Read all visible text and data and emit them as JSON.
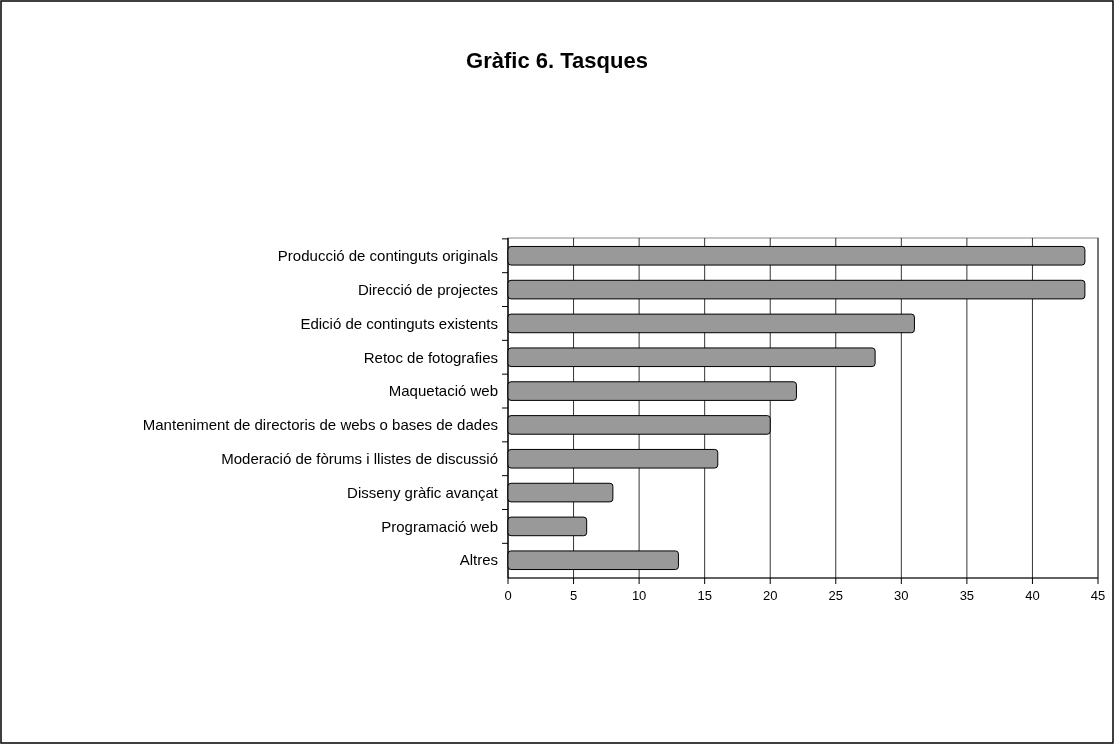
{
  "chart_data": {
    "type": "bar",
    "orientation": "horizontal",
    "title": "Gràfic 6. Tasques",
    "categories": [
      "Producció de continguts originals",
      "Direcció de projectes",
      "Edició de continguts existents",
      "Retoc de fotografies",
      "Maquetació web",
      "Manteniment de directoris de webs o bases de dades",
      "Moderació de fòrums i llistes de discussió",
      "Disseny gràfic avançat",
      "Programació web",
      "Altres"
    ],
    "values": [
      44,
      44,
      31,
      28,
      22,
      20,
      16,
      8,
      6,
      13
    ],
    "color": "#999999",
    "xlim": [
      0,
      45
    ],
    "xticks": [
      0,
      5,
      10,
      15,
      20,
      25,
      30,
      35,
      40,
      45
    ],
    "grid": "x"
  }
}
